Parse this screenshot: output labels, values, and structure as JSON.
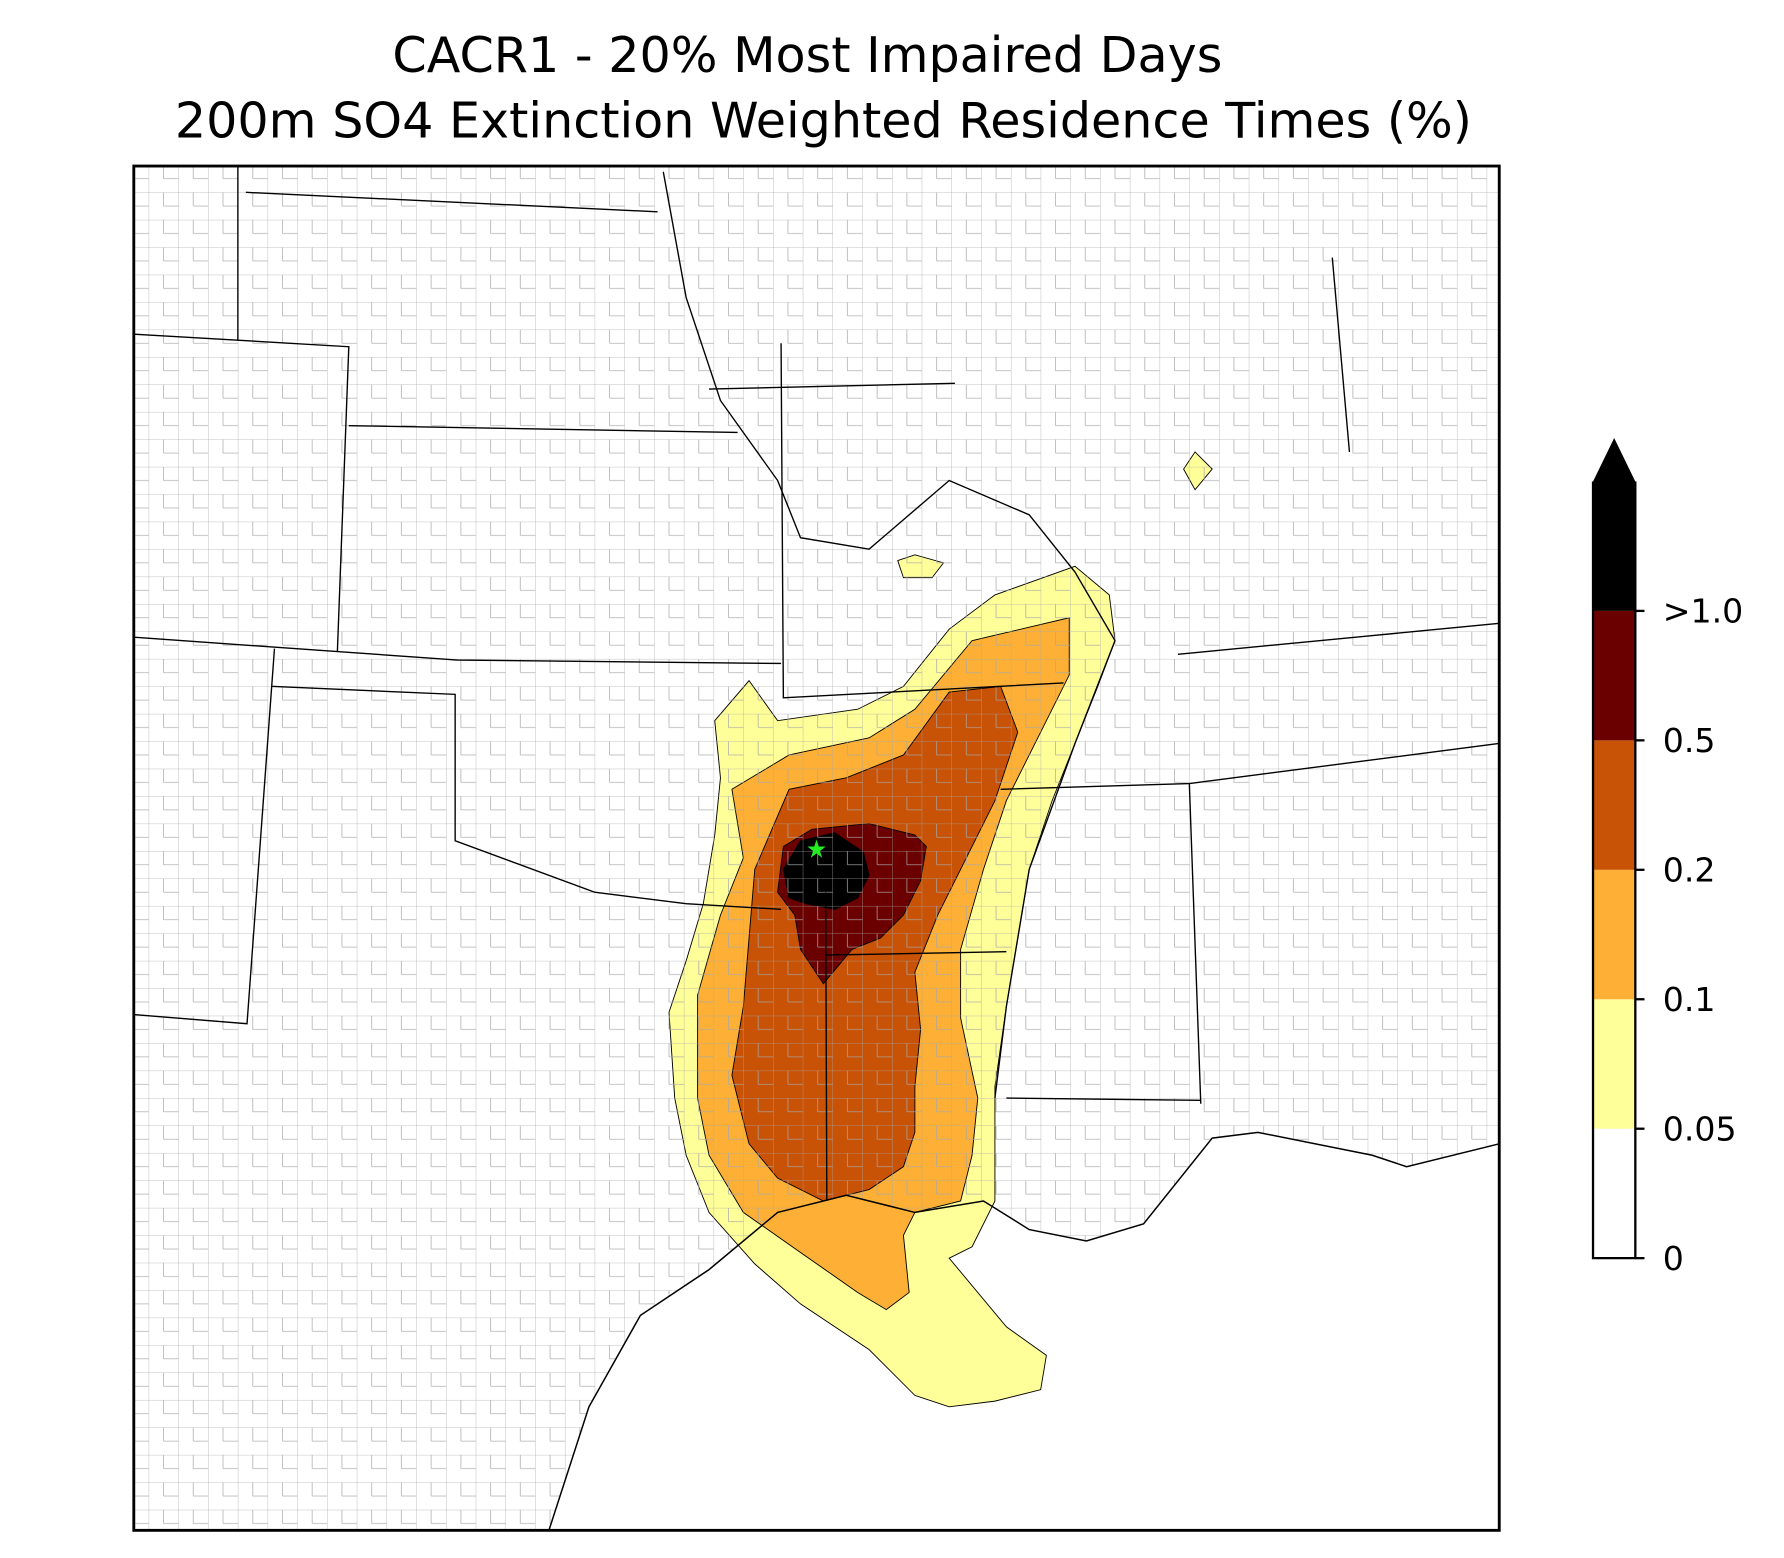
{
  "map": {
    "title": [
      "CACR1 - 20% Most Impaired Days",
      "200m SO4 Extinction Weighted Residence Times (%)"
    ],
    "colorbar": {
      "ticks": [
        0,
        0.05,
        0.1,
        0.2,
        0.5,
        {
          "value": 1.0,
          "label": ">1.0"
        }
      ],
      "colors": [
        "#ffffff",
        "#ffff99",
        "#fdb035",
        "#c85205",
        "#6b0000",
        "#000000"
      ]
    }
  }
}
